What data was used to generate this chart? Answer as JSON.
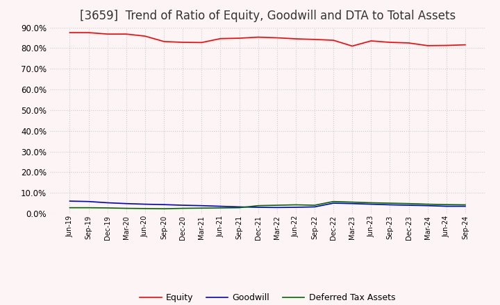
{
  "title": "[3659]  Trend of Ratio of Equity, Goodwill and DTA to Total Assets",
  "x_labels": [
    "Jun-19",
    "Sep-19",
    "Dec-19",
    "Mar-20",
    "Jun-20",
    "Sep-20",
    "Dec-20",
    "Mar-21",
    "Jun-21",
    "Sep-21",
    "Dec-21",
    "Mar-22",
    "Jun-22",
    "Sep-22",
    "Dec-22",
    "Mar-23",
    "Jun-23",
    "Sep-23",
    "Dec-23",
    "Mar-24",
    "Jun-24",
    "Sep-24"
  ],
  "equity": [
    87.5,
    87.5,
    86.8,
    86.8,
    85.8,
    83.2,
    82.8,
    82.7,
    84.6,
    84.8,
    85.3,
    85.0,
    84.5,
    84.2,
    83.8,
    81.0,
    83.5,
    82.8,
    82.5,
    81.2,
    81.3,
    81.6
  ],
  "goodwill": [
    6.0,
    5.8,
    5.2,
    4.8,
    4.5,
    4.3,
    4.0,
    3.8,
    3.5,
    3.2,
    3.0,
    2.9,
    3.0,
    3.2,
    5.0,
    4.8,
    4.5,
    4.2,
    4.0,
    3.8,
    3.5,
    3.5
  ],
  "dta": [
    2.8,
    2.8,
    2.7,
    2.5,
    2.4,
    2.3,
    2.5,
    2.6,
    2.7,
    2.8,
    3.8,
    4.0,
    4.2,
    4.0,
    5.8,
    5.5,
    5.2,
    5.0,
    4.8,
    4.5,
    4.3,
    4.2
  ],
  "equity_color": "#ff0000",
  "goodwill_color": "#0000cc",
  "dta_color": "#006600",
  "ylim": [
    0,
    90
  ],
  "yticks": [
    0,
    10,
    20,
    30,
    40,
    50,
    60,
    70,
    80,
    90
  ],
  "background_color": "#fdf5f5",
  "plot_bg_color": "#fdf5f5",
  "grid_color": "#cccccc",
  "title_fontsize": 12,
  "legend_labels": [
    "Equity",
    "Goodwill",
    "Deferred Tax Assets"
  ]
}
